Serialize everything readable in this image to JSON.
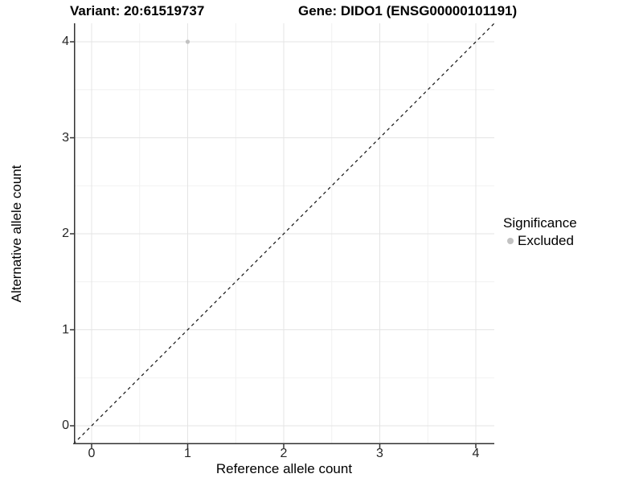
{
  "header": {
    "variant_title": "Variant: 20:61519737",
    "gene_title": "Gene: DIDO1 (ENSG00000101191)"
  },
  "chart_data": {
    "type": "scatter",
    "title": "Variant: 20:61519737  /  Gene: DIDO1 (ENSG00000101191)",
    "xlabel": "Reference allele count",
    "ylabel": "Alternative allele count",
    "xlim": [
      -0.19,
      4.19
    ],
    "ylim": [
      -0.19,
      4.19
    ],
    "xticks": [
      0,
      1,
      2,
      3,
      4
    ],
    "yticks": [
      0,
      1,
      2,
      3,
      4
    ],
    "minor_ticks": [
      0.5,
      1.5,
      2.5,
      3.5
    ],
    "grid": "major and minor, light gray, on white background",
    "points": [
      {
        "x": 1,
        "y": 4,
        "series": "Excluded"
      }
    ],
    "reference_line": {
      "type": "identity y=x",
      "style": "dashed",
      "color": "#111111"
    },
    "legend": {
      "title": "Significance",
      "position": "right",
      "items": [
        {
          "label": "Excluded",
          "color": "#c2c2c2"
        }
      ]
    },
    "colors": {
      "point": "#c2c2c2",
      "grid_major": "#e4e4e4",
      "grid_minor": "#f1f1f1",
      "axis_line": "#333333",
      "tick": "#333333"
    }
  }
}
